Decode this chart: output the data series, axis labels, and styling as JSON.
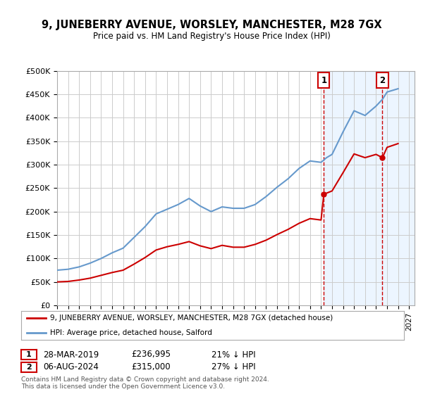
{
  "title": "9, JUNEBERRY AVENUE, WORSLEY, MANCHESTER, M28 7GX",
  "subtitle": "Price paid vs. HM Land Registry's House Price Index (HPI)",
  "ylabel_ticks": [
    "£0",
    "£50K",
    "£100K",
    "£150K",
    "£200K",
    "£250K",
    "£300K",
    "£350K",
    "£400K",
    "£450K",
    "£500K"
  ],
  "ytick_values": [
    0,
    50000,
    100000,
    150000,
    200000,
    250000,
    300000,
    350000,
    400000,
    450000,
    500000
  ],
  "ylim": [
    0,
    500000
  ],
  "xlim_start": 1995.0,
  "xlim_end": 2027.5,
  "legend_line1": "9, JUNEBERRY AVENUE, WORSLEY, MANCHESTER, M28 7GX (detached house)",
  "legend_line2": "HPI: Average price, detached house, Salford",
  "annotation1_date": "28-MAR-2019",
  "annotation1_price": "£236,995",
  "annotation1_hpi": "21% ↓ HPI",
  "annotation2_date": "06-AUG-2024",
  "annotation2_price": "£315,000",
  "annotation2_hpi": "27% ↓ HPI",
  "footer": "Contains HM Land Registry data © Crown copyright and database right 2024.\nThis data is licensed under the Open Government Licence v3.0.",
  "line_color_red": "#cc0000",
  "line_color_blue": "#6699cc",
  "background_color": "#ffffff",
  "grid_color": "#cccccc",
  "shade_color": "#ddeeff",
  "marker1_x": 2019.25,
  "marker1_y": 236995,
  "marker2_x": 2024.58,
  "marker2_y": 315000,
  "hpi_years": [
    1995,
    1996,
    1997,
    1998,
    1999,
    2000,
    2001,
    2002,
    2003,
    2004,
    2005,
    2006,
    2007,
    2008,
    2009,
    2010,
    2011,
    2012,
    2013,
    2014,
    2015,
    2016,
    2017,
    2018,
    2019,
    2019.5,
    2020,
    2021,
    2022,
    2023,
    2024,
    2024.6,
    2025,
    2026
  ],
  "hpi_values": [
    75000,
    77000,
    82000,
    90000,
    100000,
    112000,
    122000,
    145000,
    168000,
    195000,
    205000,
    215000,
    228000,
    212000,
    200000,
    210000,
    207000,
    207000,
    215000,
    232000,
    252000,
    270000,
    292000,
    308000,
    305000,
    315000,
    322000,
    370000,
    415000,
    405000,
    425000,
    440000,
    455000,
    462000
  ],
  "red_years": [
    1995,
    1996,
    1997,
    1998,
    1999,
    2000,
    2001,
    2002,
    2003,
    2004,
    2005,
    2006,
    2007,
    2008,
    2009,
    2010,
    2011,
    2012,
    2013,
    2014,
    2015,
    2016,
    2017,
    2018,
    2019,
    2019.25,
    2020,
    2021,
    2022,
    2023,
    2024,
    2024.58,
    2025,
    2026
  ],
  "red_values": [
    50000,
    51000,
    54000,
    58000,
    64000,
    70000,
    75000,
    88000,
    102000,
    118000,
    125000,
    130000,
    136000,
    127000,
    121000,
    128000,
    124000,
    124000,
    130000,
    139000,
    151000,
    162000,
    175000,
    185000,
    182000,
    236995,
    244000,
    283000,
    323000,
    315000,
    322000,
    315000,
    337000,
    345000
  ]
}
